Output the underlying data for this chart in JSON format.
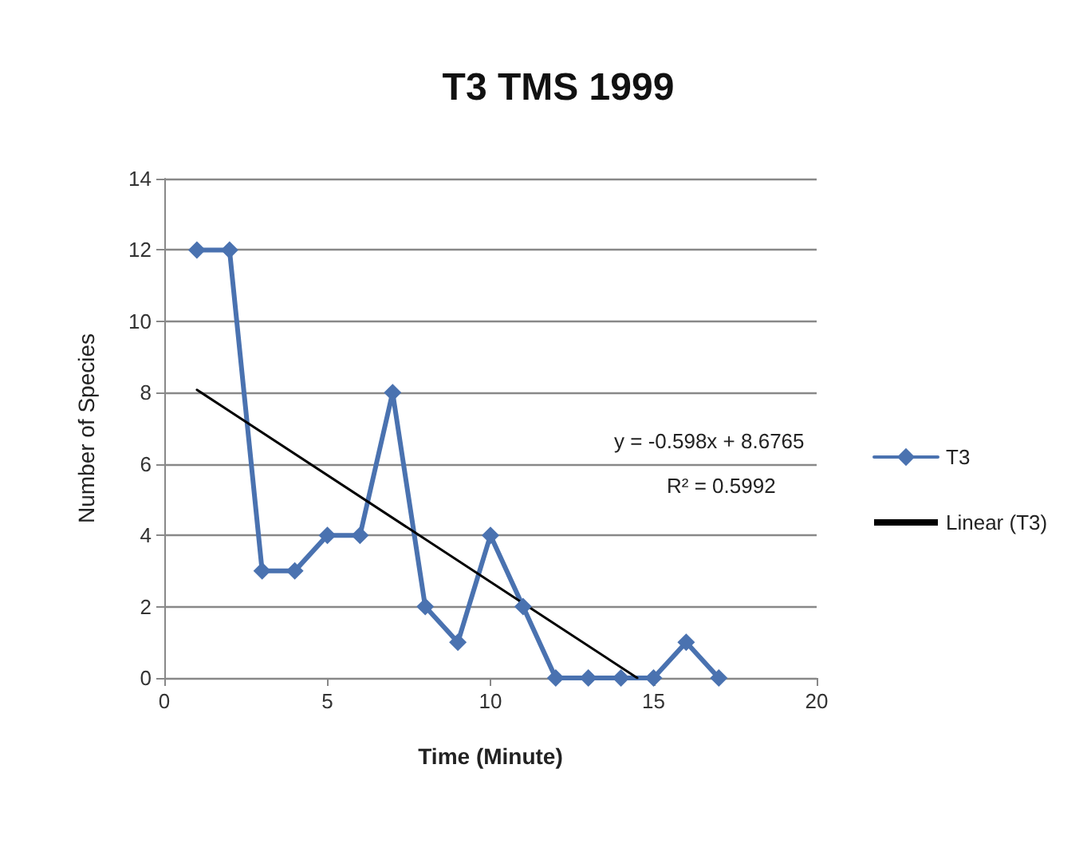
{
  "chart_data": {
    "type": "line",
    "title": "T3 TMS 1999",
    "xlabel": "Time (Minute)",
    "ylabel": "Number of Species",
    "xlim": [
      0,
      20
    ],
    "xticks": [
      0,
      5,
      10,
      15,
      20
    ],
    "ylim": [
      0,
      14
    ],
    "yticks": [
      0,
      2,
      4,
      6,
      8,
      10,
      12,
      14
    ],
    "grid": "y",
    "legend": "right",
    "series": [
      {
        "name": "T3",
        "color": "#4a72b0",
        "marker": "diamond",
        "x": [
          1,
          2,
          3,
          4,
          5,
          6,
          7,
          8,
          9,
          10,
          11,
          12,
          13,
          14,
          15,
          16,
          17
        ],
        "values": [
          12,
          12,
          3,
          3,
          4,
          4,
          8,
          2,
          1,
          4,
          2,
          0,
          0,
          0,
          0,
          1,
          0
        ]
      },
      {
        "name": "Linear (T3)",
        "color": "#000000",
        "marker": "none",
        "x": [
          1,
          14.5
        ],
        "values": [
          8.08,
          0
        ]
      }
    ],
    "annotations": [
      "y = -0.598x + 8.6765",
      "R² = 0.5992"
    ]
  }
}
